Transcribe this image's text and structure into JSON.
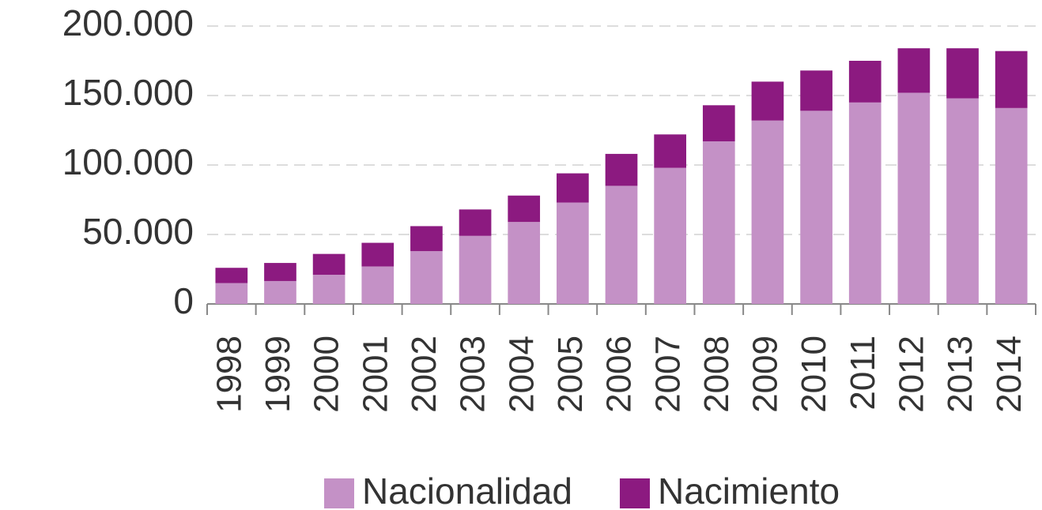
{
  "chart_data": {
    "type": "stacked_bar",
    "categories": [
      "1998",
      "1999",
      "2000",
      "2001",
      "2002",
      "2003",
      "2004",
      "2005",
      "2006",
      "2007",
      "2008",
      "2009",
      "2010",
      "2011",
      "2012",
      "2013",
      "2014"
    ],
    "series": [
      {
        "name": "Nacionalidad",
        "color": "#c491c6",
        "values": [
          15000,
          16500,
          21000,
          27000,
          38000,
          49000,
          59000,
          73000,
          85000,
          98000,
          117000,
          132000,
          139000,
          145000,
          152000,
          148000,
          141000
        ]
      },
      {
        "name": "Nacimiento",
        "color": "#8c1a80",
        "values": [
          11000,
          13000,
          15000,
          17000,
          18000,
          19000,
          19000,
          21000,
          23000,
          24000,
          26000,
          28000,
          29000,
          30000,
          32000,
          36000,
          41000
        ]
      }
    ],
    "ylim": [
      0,
      200000
    ],
    "yticks": [
      0,
      {
        "value": 50000,
        "label": "50.000"
      },
      {
        "value": 100000,
        "label": "100.000"
      },
      {
        "value": 150000,
        "label": "150.000"
      },
      {
        "value": 200000,
        "label": "200.000"
      }
    ],
    "grid": true,
    "legend": "bottom"
  }
}
